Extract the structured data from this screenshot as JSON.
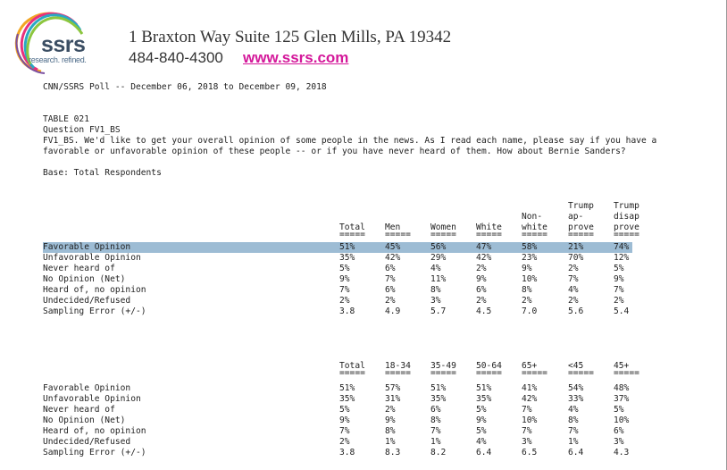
{
  "header": {
    "logo_word": "ssrs",
    "logo_tagline": "research. refined.",
    "address": "1 Braxton Way Suite 125 Glen Mills, PA 19342",
    "phone": "484-840-4300",
    "website": "www.ssrs.com",
    "colors": {
      "brand_text": "#3b4e63",
      "link": "#d4189a",
      "highlight": "#9dbcd4"
    }
  },
  "poll_line": "CNN/SSRS Poll -- December 06, 2018 to December 09, 2018",
  "table_meta": {
    "table": "TABLE 021",
    "question_id": "Question FV1_BS",
    "question_text": "FV1_BS. We'd like to get your overall opinion of some people in the news. As I read each name, please say if you have a favorable or unfavorable opinion of these people -- or if you have never heard of them. How about Bernie Sanders?",
    "base": "Base: Total Respondents"
  },
  "rule": "=====",
  "table1": {
    "headers": [
      [
        "",
        "",
        "Total"
      ],
      [
        "",
        "",
        "Men"
      ],
      [
        "",
        "",
        "Women"
      ],
      [
        "",
        "",
        "White"
      ],
      [
        "",
        "Non-",
        "white"
      ],
      [
        "Trump",
        "ap-",
        "prove"
      ],
      [
        "Trump",
        "disap",
        "prove"
      ]
    ],
    "rows": [
      {
        "label": "Favorable Opinion",
        "values": [
          "51%",
          "45%",
          "56%",
          "47%",
          "58%",
          "21%",
          "74%"
        ],
        "highlighted": true
      },
      {
        "label": "Unfavorable Opinion",
        "values": [
          "35%",
          "42%",
          "29%",
          "42%",
          "23%",
          "70%",
          "12%"
        ]
      },
      {
        "label": "Never heard of",
        "values": [
          "5%",
          "6%",
          "4%",
          "2%",
          "9%",
          "2%",
          "5%"
        ]
      },
      {
        "label": "No Opinion (Net)",
        "values": [
          "9%",
          "7%",
          "11%",
          "9%",
          "10%",
          "7%",
          "9%"
        ]
      },
      {
        "label": "Heard of, no opinion",
        "values": [
          "7%",
          "6%",
          "8%",
          "6%",
          "8%",
          "4%",
          "7%"
        ]
      },
      {
        "label": "Undecided/Refused",
        "values": [
          "2%",
          "2%",
          "3%",
          "2%",
          "2%",
          "2%",
          "2%"
        ]
      },
      {
        "label": "Sampling Error (+/-)",
        "values": [
          "3.8",
          "4.9",
          "5.7",
          "4.5",
          "7.0",
          "5.6",
          "5.4"
        ]
      }
    ]
  },
  "table2": {
    "headers": [
      "Total",
      "18-34",
      "35-49",
      "50-64",
      "65+",
      "<45",
      "45+"
    ],
    "rows": [
      {
        "label": "Favorable Opinion",
        "values": [
          "51%",
          "57%",
          "51%",
          "51%",
          "41%",
          "54%",
          "48%"
        ]
      },
      {
        "label": "Unfavorable Opinion",
        "values": [
          "35%",
          "31%",
          "35%",
          "35%",
          "42%",
          "33%",
          "37%"
        ]
      },
      {
        "label": "Never heard of",
        "values": [
          "5%",
          "2%",
          "6%",
          "5%",
          "7%",
          "4%",
          "5%"
        ]
      },
      {
        "label": "No Opinion (Net)",
        "values": [
          "9%",
          "9%",
          "8%",
          "9%",
          "10%",
          "8%",
          "10%"
        ]
      },
      {
        "label": "Heard of, no opinion",
        "values": [
          "7%",
          "8%",
          "7%",
          "5%",
          "7%",
          "7%",
          "6%"
        ]
      },
      {
        "label": "Undecided/Refused",
        "values": [
          "2%",
          "1%",
          "1%",
          "4%",
          "3%",
          "1%",
          "3%"
        ]
      },
      {
        "label": "Sampling Error (+/-)",
        "values": [
          "3.8",
          "8.3",
          "8.2",
          "6.4",
          "6.5",
          "6.4",
          "4.3"
        ]
      }
    ]
  }
}
